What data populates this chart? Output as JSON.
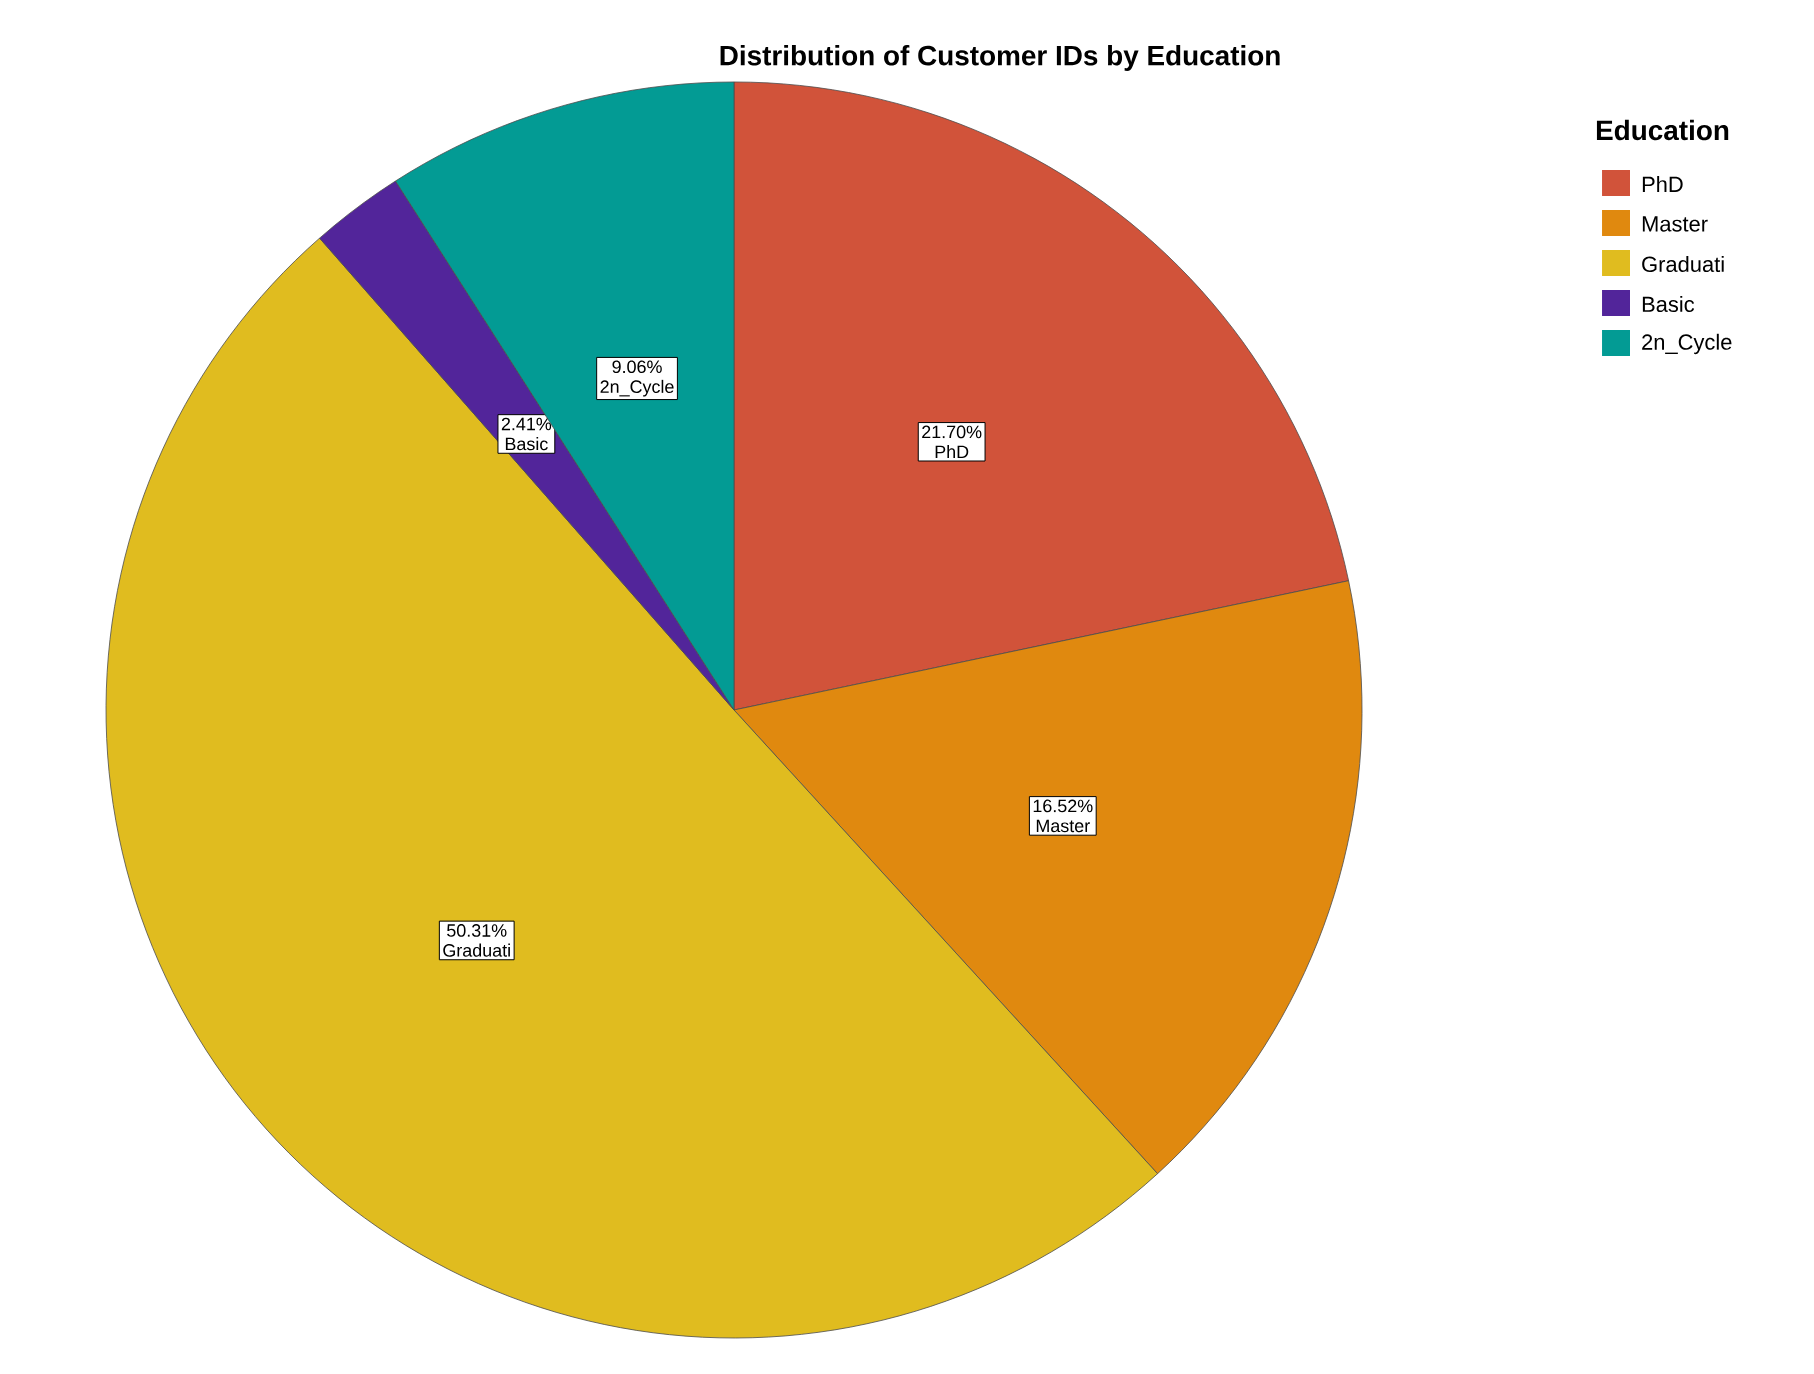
{
  "chart_data": {
    "type": "pie",
    "title": "Distribution of Customer IDs by Education",
    "legend_title": "Education",
    "legend": "top right",
    "categories": [
      "PhD",
      "Master",
      "Graduati",
      "Basic",
      "2n_Cycle"
    ],
    "values": [
      21.7,
      16.52,
      50.31,
      2.41,
      9.06
    ],
    "value_labels": [
      "21.70%",
      "16.52%",
      "50.31%",
      "2.41%",
      "9.06%"
    ],
    "colors": [
      "#d1533a",
      "#e0890f",
      "#e0bc1f",
      "#52259a",
      "#039b94"
    ]
  }
}
